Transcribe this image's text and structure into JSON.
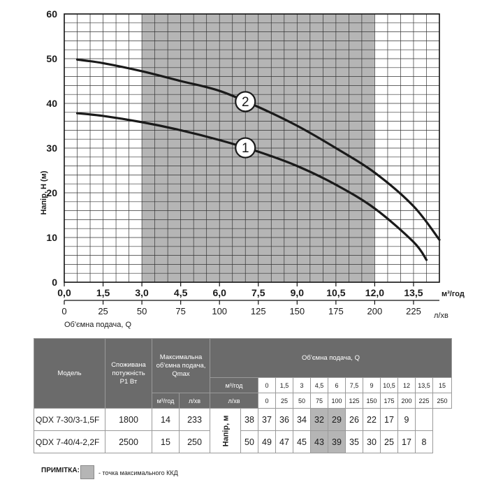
{
  "chart_data": {
    "type": "line",
    "ylabel": "Напір, Н (м)",
    "xlabel_units_primary": "м³/год",
    "xlabel_secondary": "Об'ємна подача, Q",
    "xlabel_units_secondary": "л/хв",
    "xlim": [
      0,
      14.5
    ],
    "ylim": [
      0,
      60
    ],
    "grid": true,
    "y_ticks": [
      "0",
      "10",
      "20",
      "30",
      "40",
      "50",
      "60"
    ],
    "x_ticks_primary": [
      "0,0",
      "1,5",
      "3,0",
      "4,5",
      "6,0",
      "7,5",
      "9,0",
      "10,5",
      "12,0",
      "13,5"
    ],
    "x_ticks_secondary": [
      "0",
      "25",
      "50",
      "75",
      "100",
      "125",
      "150",
      "175",
      "200",
      "225"
    ],
    "highlight_region": {
      "x_from": 3.0,
      "x_to": 12.0,
      "label": "точка максимального ККД"
    },
    "series": [
      {
        "name": "1",
        "model": "QDX 7-30/3-1,5F",
        "x": [
          0.5,
          1.5,
          3.0,
          4.5,
          6.0,
          7.5,
          9.0,
          10.5,
          12.0,
          13.5,
          14.0
        ],
        "y": [
          37.8,
          37.2,
          35.8,
          34.0,
          31.8,
          29.2,
          26.0,
          21.8,
          16.5,
          9.0,
          5.0
        ]
      },
      {
        "name": "2",
        "model": "QDX 7-40/4-2,2F",
        "x": [
          0.5,
          1.5,
          3.0,
          4.5,
          6.0,
          7.5,
          9.0,
          10.5,
          12.0,
          13.5,
          14.5
        ],
        "y": [
          49.8,
          49.0,
          47.2,
          45.0,
          42.8,
          39.2,
          35.0,
          30.0,
          24.5,
          17.0,
          9.5
        ]
      }
    ]
  },
  "table": {
    "col_model": "Модель",
    "col_power": "Споживана потужність",
    "col_power_unit": "P1 Вт",
    "col_qmax": "Максимальна об'ємна подача, Qmax",
    "col_qmax_m3": "м³/год",
    "col_qmax_lmin": "л/хв",
    "col_flow": "Об'ємна подача, Q",
    "row_m3": "м³/год",
    "row_lmin": "л/хв",
    "head_label": "Напір, м",
    "flow_m3": [
      "0",
      "1,5",
      "3",
      "4,5",
      "6",
      "7,5",
      "9",
      "10,5",
      "12",
      "13,5",
      "15"
    ],
    "flow_lmin": [
      "0",
      "25",
      "50",
      "75",
      "100",
      "125",
      "150",
      "175",
      "200",
      "225",
      "250"
    ],
    "rows": [
      {
        "model": "QDX 7-30/3-1,5F",
        "power": "1800",
        "qmax_m3": "14",
        "qmax_lmin": "233",
        "heads": [
          "38",
          "37",
          "36",
          "34",
          "32",
          "29",
          "26",
          "22",
          "17",
          "9",
          ""
        ]
      },
      {
        "model": "QDX 7-40/4-2,2F",
        "power": "2500",
        "qmax_m3": "15",
        "qmax_lmin": "250",
        "heads": [
          "50",
          "49",
          "47",
          "45",
          "43",
          "39",
          "35",
          "30",
          "25",
          "17",
          "8"
        ]
      }
    ]
  },
  "note": {
    "label": "ПРИМІТКА:",
    "text": "- точка максимального ККД"
  }
}
